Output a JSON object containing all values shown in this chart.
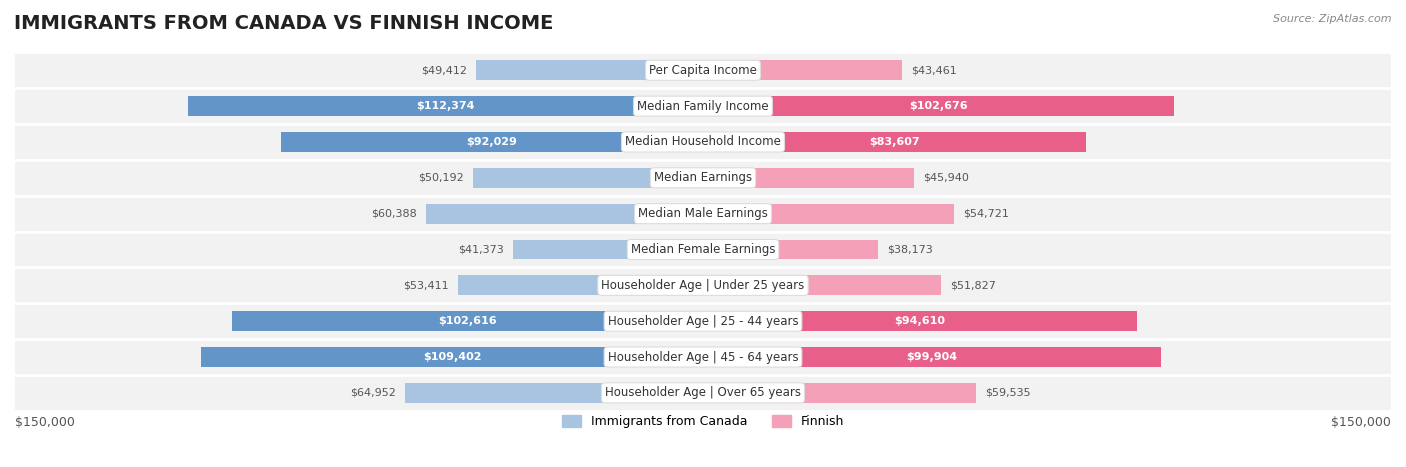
{
  "title": "IMMIGRANTS FROM CANADA VS FINNISH INCOME",
  "source": "Source: ZipAtlas.com",
  "categories": [
    "Per Capita Income",
    "Median Family Income",
    "Median Household Income",
    "Median Earnings",
    "Median Male Earnings",
    "Median Female Earnings",
    "Householder Age | Under 25 years",
    "Householder Age | 25 - 44 years",
    "Householder Age | 45 - 64 years",
    "Householder Age | Over 65 years"
  ],
  "canada_values": [
    49412,
    112374,
    92029,
    50192,
    60388,
    41373,
    53411,
    102616,
    109402,
    64952
  ],
  "finnish_values": [
    43461,
    102676,
    83607,
    45940,
    54721,
    38173,
    51827,
    94610,
    99904,
    59535
  ],
  "canada_color_light": "#a8c4e0",
  "canada_color_dark": "#6495c8",
  "finnish_color_light": "#f4a0b8",
  "finnish_color_dark": "#e8608a",
  "label_bg_color": "#f0f0f0",
  "row_bg_color": "#f5f5f5",
  "max_value": 150000,
  "xlabel_left": "$150,000",
  "xlabel_right": "$150,000",
  "legend_canada": "Immigrants from Canada",
  "legend_finnish": "Finnish",
  "title_fontsize": 14,
  "label_fontsize": 8.5,
  "value_fontsize": 8,
  "bar_height": 0.55
}
